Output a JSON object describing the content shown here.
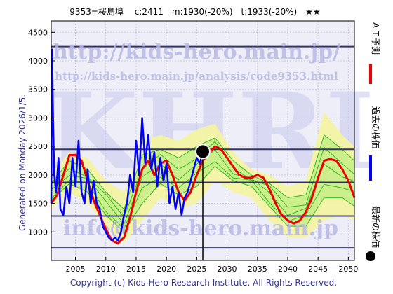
{
  "chart_data": {
    "type": "line",
    "title": "9353=桜島埠　 c:2411　m:1930(-20%)　t:1933(-20%)　★★",
    "x_ticks": [
      "2005",
      "2010",
      "2015",
      "2020",
      "2025",
      "2030",
      "2035",
      "2040",
      "2045",
      "2050"
    ],
    "y_ticks": [
      "1000",
      "1500",
      "2000",
      "2500",
      "3000",
      "3500",
      "4000",
      "4500"
    ],
    "xlim": [
      2001,
      2051
    ],
    "ylim": [
      500,
      4700
    ],
    "grid": true,
    "hlines": [
      4250,
      2450,
      1870,
      1280,
      720
    ],
    "vline_x": 2026.0,
    "latest_point": {
      "x": 2026.0,
      "y": 2411
    },
    "series": [
      {
        "name": "過去の株価",
        "color": "#0000ff",
        "x": [
          2001.0,
          2001.15,
          2001.3,
          2001.5,
          2001.8,
          2002.2,
          2002.5,
          2003.0,
          2003.5,
          2004.0,
          2004.5,
          2005.0,
          2005.5,
          2006.0,
          2006.5,
          2007.0,
          2007.5,
          2008.0,
          2008.5,
          2009.0,
          2009.5,
          2010.0,
          2010.5,
          2011.0,
          2011.5,
          2012.0,
          2012.5,
          2013.0,
          2013.5,
          2014.0,
          2014.5,
          2015.0,
          2015.5,
          2016.0,
          2016.5,
          2017.0,
          2017.5,
          2018.0,
          2018.5,
          2019.0,
          2019.5,
          2020.0,
          2020.5,
          2021.0,
          2021.5,
          2022.0,
          2022.5,
          2023.0,
          2023.5,
          2024.0,
          2024.5,
          2025.0,
          2025.5,
          2026.0
        ],
        "y": [
          1500,
          4200,
          3000,
          2000,
          1700,
          2300,
          1400,
          1300,
          1800,
          1500,
          2300,
          1800,
          2600,
          1700,
          1500,
          2100,
          1500,
          1900,
          1500,
          1400,
          1100,
          1000,
          900,
          850,
          900,
          850,
          1000,
          1300,
          1500,
          2000,
          1700,
          2600,
          2000,
          3000,
          2200,
          2700,
          2100,
          2400,
          1800,
          2300,
          1900,
          2200,
          1500,
          1800,
          1400,
          1700,
          1300,
          1600,
          1700,
          1900,
          2100,
          2300,
          2200,
          2411
        ]
      },
      {
        "name": "ＡＩ予測",
        "color": "#ee0000",
        "x": [
          2001,
          2002,
          2003,
          2004,
          2005,
          2006,
          2007,
          2008,
          2009,
          2010,
          2011,
          2012,
          2013,
          2014,
          2015,
          2016,
          2017,
          2018,
          2019,
          2020,
          2021,
          2022,
          2023,
          2024,
          2025,
          2026,
          2027,
          2028,
          2029,
          2030,
          2031,
          2032,
          2033,
          2034,
          2035,
          2036,
          2037,
          2038,
          2039,
          2040,
          2041,
          2042,
          2043,
          2044,
          2045,
          2046,
          2047,
          2048,
          2049,
          2050,
          2051
        ],
        "y": [
          1500,
          1650,
          2000,
          2350,
          2350,
          2250,
          1900,
          1550,
          1300,
          1050,
          850,
          800,
          900,
          1250,
          1700,
          2100,
          2250,
          2000,
          2200,
          2250,
          2000,
          1700,
          1550,
          1700,
          2000,
          2250,
          2380,
          2500,
          2450,
          2300,
          2150,
          2000,
          1950,
          1950,
          2000,
          1950,
          1750,
          1500,
          1300,
          1200,
          1150,
          1200,
          1350,
          1600,
          1950,
          2250,
          2280,
          2250,
          2100,
          1900,
          1600
        ]
      }
    ],
    "band_outer": {
      "x": [
        2001,
        2004,
        2007,
        2010,
        2013,
        2016,
        2019,
        2022,
        2025,
        2028,
        2031,
        2034,
        2037,
        2040,
        2043,
        2046,
        2049,
        2051
      ],
      "upper": [
        2000,
        2400,
        2300,
        1900,
        1700,
        2600,
        2700,
        2600,
        2800,
        2900,
        2400,
        2100,
        2000,
        1800,
        1900,
        3100,
        2700,
        2500
      ],
      "lower": [
        1400,
        1700,
        1500,
        1100,
        800,
        1200,
        1600,
        1400,
        1500,
        1900,
        1700,
        1600,
        1200,
        900,
        900,
        1200,
        1300,
        1200
      ]
    },
    "band_inner": {
      "x": [
        2001,
        2004,
        2007,
        2010,
        2013,
        2016,
        2019,
        2022,
        2025,
        2028,
        2031,
        2034,
        2037,
        2040,
        2043,
        2046,
        2049,
        2051
      ],
      "upper": [
        1850,
        2250,
        2100,
        1700,
        1400,
        2350,
        2450,
        2300,
        2500,
        2650,
        2250,
        2000,
        1850,
        1600,
        1650,
        2700,
        2450,
        2250
      ],
      "lower": [
        1550,
        1850,
        1700,
        1300,
        1000,
        1500,
        1850,
        1650,
        1800,
        2150,
        1900,
        1800,
        1450,
        1100,
        1100,
        1600,
        1600,
        1450
      ]
    },
    "ensemble_color": "#33bb22"
  },
  "watermark": {
    "url": "http://kids-hero.main.jp/",
    "analysis_url": "http://kids-hero.main.jp/analysis/code9353.html",
    "email": "info@kids-hero.main.jp",
    "letters": "KHRI"
  },
  "side_text": "Generated on Monday 2026/1/5.",
  "legend": {
    "ai": "ＡＩ予測",
    "past": "過去の株価",
    "latest": "最新の株価"
  },
  "copyright": "Copyright (c) Kids-Hero Research Institute. All Rights Reserved.",
  "colors": {
    "plot_bg": "#eeeef8",
    "hline": "#333366",
    "band_outer": "#f4f4a0",
    "band_inner": "#c8ee88"
  }
}
